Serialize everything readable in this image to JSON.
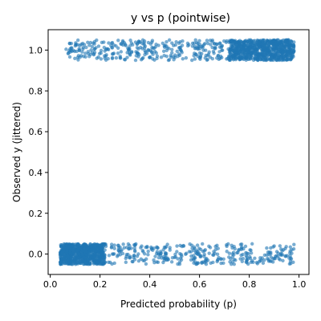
{
  "chart_data": {
    "type": "scatter",
    "title": "y vs p (pointwise)",
    "xlabel": "Predicted probability (p)",
    "ylabel": "Observed y (jittered)",
    "xlim": [
      -0.0085,
      1.04
    ],
    "ylim": [
      -0.1,
      1.1
    ],
    "xticks": [
      0.0,
      0.2,
      0.4,
      0.6,
      0.8,
      1.0
    ],
    "xtick_labels": [
      "0.0",
      "0.2",
      "0.4",
      "0.6",
      "0.8",
      "1.0"
    ],
    "yticks": [
      0.0,
      0.2,
      0.4,
      0.6,
      0.8,
      1.0
    ],
    "ytick_labels": [
      "0.0",
      "0.2",
      "0.4",
      "0.6",
      "0.8",
      "1.0"
    ],
    "grid": false,
    "series": [
      {
        "marker_color": "#1f77b4",
        "alpha": 0.6,
        "y_levels": [
          0,
          1
        ],
        "jitter": 0.05,
        "clusters": [
          {
            "y": 0,
            "x_range": [
              0.04,
              0.98
            ],
            "dense_x_range": [
              0.04,
              0.22
            ],
            "count": 1100
          },
          {
            "y": 1,
            "x_range": [
              0.06,
              0.98
            ],
            "dense_x_range": [
              0.72,
              0.98
            ],
            "count": 1100
          }
        ]
      }
    ]
  }
}
